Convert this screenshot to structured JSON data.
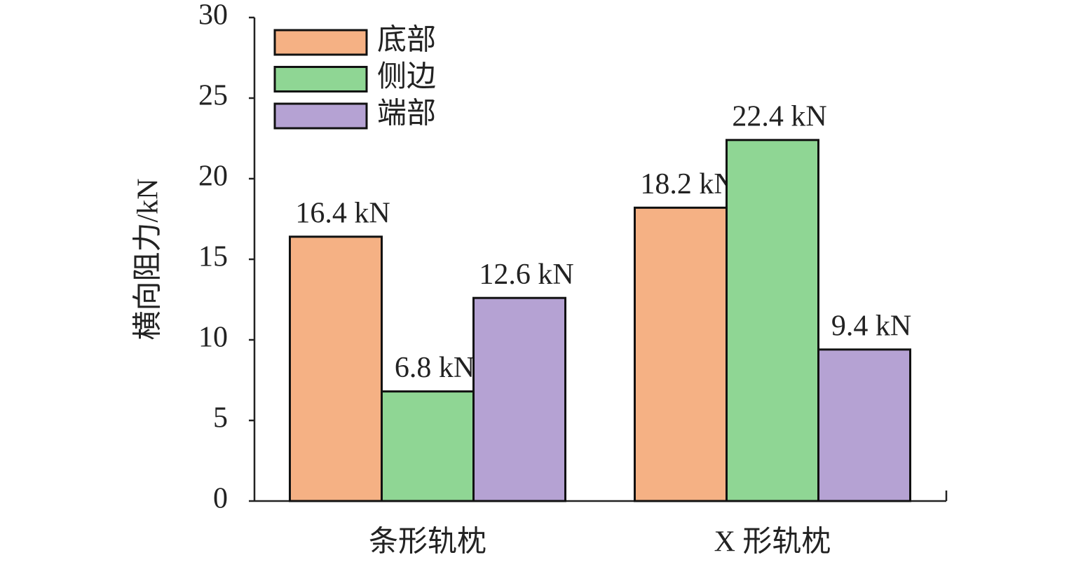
{
  "chart_data": {
    "type": "bar",
    "y_label": "横向阻力/kN",
    "categories": [
      "条形轨枕",
      "X 形轨枕"
    ],
    "series": [
      {
        "name": "底部",
        "color": "#f5b184",
        "values": [
          16.4,
          18.2
        ],
        "value_labels": [
          "16.4 kN",
          "18.2 kN"
        ]
      },
      {
        "name": "侧边",
        "color": "#8fd694",
        "values": [
          6.8,
          22.4
        ],
        "value_labels": [
          "6.8 kN",
          "22.4 kN"
        ]
      },
      {
        "name": "端部",
        "color": "#b5a2d3",
        "values": [
          12.6,
          9.4
        ],
        "value_labels": [
          "12.6 kN",
          "9.4 kN"
        ]
      }
    ],
    "ylim": [
      0,
      30
    ],
    "yticks": [
      0,
      5,
      10,
      15,
      20,
      25,
      30
    ],
    "legend": "upper left"
  }
}
